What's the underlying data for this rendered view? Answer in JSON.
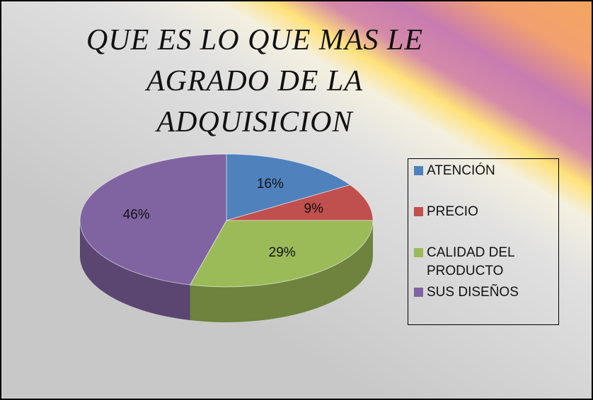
{
  "chart_data": {
    "type": "pie",
    "title": "QUE ES LO QUE MAS LE AGRADO DE LA ADQUISICION",
    "categories": [
      "ATENCIÓN",
      "PRECIO",
      "CALIDAD DEL PRODUCTO",
      "SUS DISEÑOS"
    ],
    "values": [
      16,
      9,
      29,
      46
    ],
    "value_labels": [
      "16%",
      "9%",
      "29%",
      "46%"
    ],
    "colors": [
      "#4f81bd",
      "#c0504d",
      "#9bbb59",
      "#8064a2"
    ],
    "legend": "right"
  }
}
